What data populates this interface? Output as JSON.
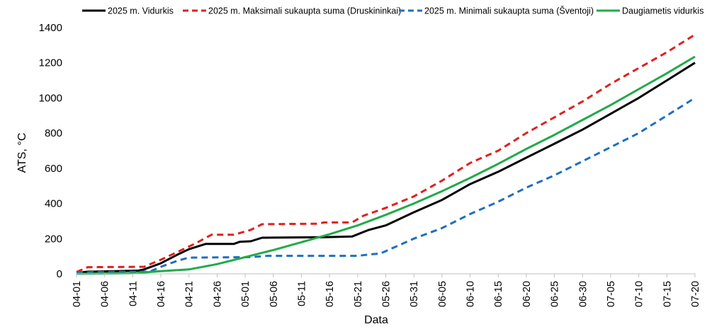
{
  "chart_data": {
    "type": "line",
    "xlabel": "Data",
    "ylabel": "ATS, °C",
    "ylim": [
      0,
      1400
    ],
    "yticks": [
      0,
      200,
      400,
      600,
      800,
      1000,
      1200,
      1400
    ],
    "grid": false,
    "legend_position": "top",
    "x_start": "04-01",
    "x_end": "07-20",
    "x_tick_labels": [
      "04-01",
      "04-06",
      "04-11",
      "04-16",
      "04-21",
      "04-26",
      "05-01",
      "05-06",
      "05-11",
      "05-16",
      "05-21",
      "05-26",
      "05-31",
      "06-05",
      "06-10",
      "06-15",
      "06-20",
      "06-25",
      "06-30",
      "07-05",
      "07-10",
      "07-15",
      "07-20"
    ],
    "series": [
      {
        "name": "2025 m. Vidurkis",
        "color": "#000000",
        "dash": "solid",
        "points": [
          [
            "04-01",
            5
          ],
          [
            "04-03",
            12
          ],
          [
            "04-08",
            15
          ],
          [
            "04-12",
            18
          ],
          [
            "04-13",
            25
          ],
          [
            "04-16",
            60
          ],
          [
            "04-19",
            110
          ],
          [
            "04-21",
            140
          ],
          [
            "04-24",
            170
          ],
          [
            "04-29",
            170
          ],
          [
            "04-30",
            182
          ],
          [
            "05-02",
            185
          ],
          [
            "05-04",
            205
          ],
          [
            "05-15",
            208
          ],
          [
            "05-20",
            212
          ],
          [
            "05-23",
            250
          ],
          [
            "05-26",
            275
          ],
          [
            "05-31",
            350
          ],
          [
            "06-05",
            420
          ],
          [
            "06-10",
            510
          ],
          [
            "06-15",
            580
          ],
          [
            "06-20",
            660
          ],
          [
            "06-25",
            740
          ],
          [
            "06-30",
            820
          ],
          [
            "07-05",
            910
          ],
          [
            "07-10",
            1000
          ],
          [
            "07-15",
            1100
          ],
          [
            "07-20",
            1200
          ]
        ]
      },
      {
        "name": "2025 m. Maksimali sukaupta suma (Druskininkai)",
        "color": "#e02020",
        "dash": "dashed",
        "points": [
          [
            "04-01",
            10
          ],
          [
            "04-03",
            38
          ],
          [
            "04-13",
            40
          ],
          [
            "04-16",
            80
          ],
          [
            "04-18",
            110
          ],
          [
            "04-22",
            170
          ],
          [
            "04-25",
            222
          ],
          [
            "04-29",
            222
          ],
          [
            "05-02",
            250
          ],
          [
            "05-04",
            282
          ],
          [
            "05-14",
            285
          ],
          [
            "05-15",
            292
          ],
          [
            "05-20",
            292
          ],
          [
            "05-22",
            330
          ],
          [
            "05-26",
            375
          ],
          [
            "05-31",
            440
          ],
          [
            "06-05",
            530
          ],
          [
            "06-10",
            630
          ],
          [
            "06-15",
            700
          ],
          [
            "06-20",
            800
          ],
          [
            "06-25",
            890
          ],
          [
            "06-30",
            980
          ],
          [
            "07-05",
            1080
          ],
          [
            "07-10",
            1170
          ],
          [
            "07-15",
            1260
          ],
          [
            "07-20",
            1360
          ]
        ]
      },
      {
        "name": "2025 m. Minimali sukaupta suma (Šventoji)",
        "color": "#1f6fc0",
        "dash": "dashed",
        "points": [
          [
            "04-01",
            5
          ],
          [
            "04-04",
            10
          ],
          [
            "04-14",
            12
          ],
          [
            "04-16",
            40
          ],
          [
            "04-19",
            75
          ],
          [
            "04-21",
            92
          ],
          [
            "05-02",
            95
          ],
          [
            "05-05",
            102
          ],
          [
            "05-21",
            102
          ],
          [
            "05-23",
            110
          ],
          [
            "05-25",
            115
          ],
          [
            "05-31",
            200
          ],
          [
            "06-05",
            260
          ],
          [
            "06-10",
            340
          ],
          [
            "06-15",
            410
          ],
          [
            "06-20",
            490
          ],
          [
            "06-25",
            560
          ],
          [
            "06-30",
            640
          ],
          [
            "07-05",
            720
          ],
          [
            "07-10",
            800
          ],
          [
            "07-15",
            900
          ],
          [
            "07-20",
            1000
          ]
        ]
      },
      {
        "name": "Daugiametis vidurkis",
        "color": "#22aa4a",
        "dash": "solid",
        "points": [
          [
            "04-01",
            0
          ],
          [
            "04-11",
            3
          ],
          [
            "04-16",
            15
          ],
          [
            "04-21",
            25
          ],
          [
            "04-26",
            55
          ],
          [
            "05-01",
            95
          ],
          [
            "05-06",
            135
          ],
          [
            "05-11",
            180
          ],
          [
            "05-16",
            225
          ],
          [
            "05-21",
            275
          ],
          [
            "05-26",
            335
          ],
          [
            "05-31",
            400
          ],
          [
            "06-05",
            470
          ],
          [
            "06-10",
            545
          ],
          [
            "06-15",
            625
          ],
          [
            "06-20",
            710
          ],
          [
            "06-25",
            790
          ],
          [
            "06-30",
            875
          ],
          [
            "07-05",
            960
          ],
          [
            "07-10",
            1050
          ],
          [
            "07-15",
            1140
          ],
          [
            "07-20",
            1235
          ]
        ]
      }
    ]
  }
}
